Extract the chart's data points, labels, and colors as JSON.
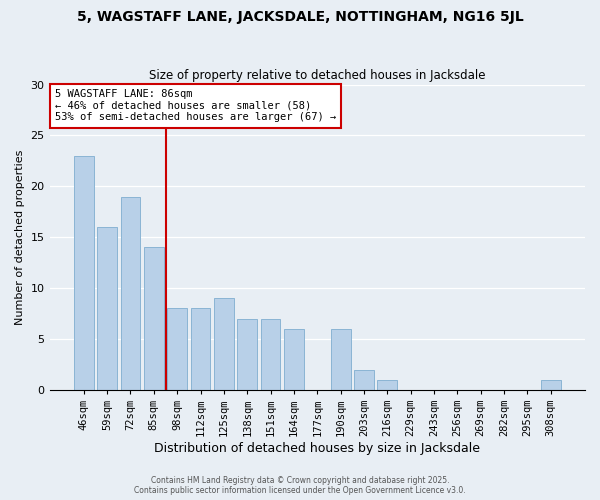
{
  "title": "5, WAGSTAFF LANE, JACKSDALE, NOTTINGHAM, NG16 5JL",
  "subtitle": "Size of property relative to detached houses in Jacksdale",
  "xlabel": "Distribution of detached houses by size in Jacksdale",
  "ylabel": "Number of detached properties",
  "bar_labels": [
    "46sqm",
    "59sqm",
    "72sqm",
    "85sqm",
    "98sqm",
    "112sqm",
    "125sqm",
    "138sqm",
    "151sqm",
    "164sqm",
    "177sqm",
    "190sqm",
    "203sqm",
    "216sqm",
    "229sqm",
    "243sqm",
    "256sqm",
    "269sqm",
    "282sqm",
    "295sqm",
    "308sqm"
  ],
  "bar_values": [
    23,
    16,
    19,
    14,
    8,
    8,
    9,
    7,
    7,
    6,
    0,
    6,
    2,
    1,
    0,
    0,
    0,
    0,
    0,
    0,
    1
  ],
  "bar_color": "#b8d0e8",
  "bar_edge_color": "#8ab4d4",
  "vline_x": 3.5,
  "vline_color": "#cc0000",
  "annotation_title": "5 WAGSTAFF LANE: 86sqm",
  "annotation_line1": "← 46% of detached houses are smaller (58)",
  "annotation_line2": "53% of semi-detached houses are larger (67) →",
  "annotation_box_color": "#ffffff",
  "annotation_box_edge": "#cc0000",
  "footer1": "Contains HM Land Registry data © Crown copyright and database right 2025.",
  "footer2": "Contains public sector information licensed under the Open Government Licence v3.0.",
  "ylim": [
    0,
    30
  ],
  "yticks": [
    0,
    5,
    10,
    15,
    20,
    25,
    30
  ],
  "background_color": "#ffffff",
  "fig_background": "#e8eef4"
}
